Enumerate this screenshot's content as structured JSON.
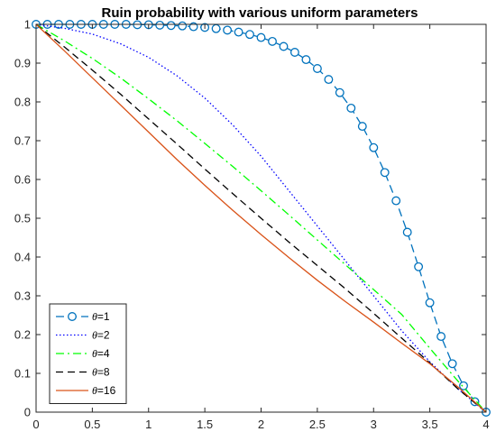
{
  "chart_data": {
    "type": "line",
    "title": "Ruin probability with various uniform parameters",
    "xlabel": "",
    "ylabel": "",
    "xlim": [
      0,
      4
    ],
    "ylim": [
      0,
      1
    ],
    "x_ticks": [
      0,
      0.5,
      1,
      1.5,
      2,
      2.5,
      3,
      3.5,
      4
    ],
    "x_tick_labels": [
      "0",
      "0.5",
      "1",
      "1.5",
      "2",
      "2.5",
      "3",
      "3.5",
      "4"
    ],
    "y_ticks": [
      0,
      0.1,
      0.2,
      0.3,
      0.4,
      0.5,
      0.6,
      0.7,
      0.8,
      0.9,
      1
    ],
    "y_tick_labels": [
      "0",
      "0.1",
      "0.2",
      "0.3",
      "0.4",
      "0.5",
      "0.6",
      "0.7",
      "0.8",
      "0.9",
      "1"
    ],
    "grid": false,
    "legend_position": "bottom-left",
    "series": [
      {
        "name": "θ=1",
        "theta_symbol": "θ",
        "theta_value": "=1",
        "color": "#0072BD",
        "style": "dashed-circles",
        "x": [
          0,
          0.1,
          0.2,
          0.3,
          0.4,
          0.5,
          0.6,
          0.7,
          0.8,
          0.9,
          1.0,
          1.1,
          1.2,
          1.3,
          1.4,
          1.5,
          1.6,
          1.7,
          1.8,
          1.9,
          2.0,
          2.1,
          2.2,
          2.3,
          2.4,
          2.5,
          2.6,
          2.7,
          2.8,
          2.9,
          3.0,
          3.1,
          3.2,
          3.3,
          3.4,
          3.5,
          3.6,
          3.7,
          3.8,
          3.9,
          4.0
        ],
        "values": [
          1.0,
          1.0,
          1.0,
          1.0,
          1.0,
          1.0,
          1.0,
          1.0,
          1.0,
          0.999,
          0.999,
          0.998,
          0.997,
          0.996,
          0.994,
          0.992,
          0.989,
          0.985,
          0.98,
          0.974,
          0.966,
          0.956,
          0.943,
          0.928,
          0.909,
          0.886,
          0.858,
          0.824,
          0.784,
          0.737,
          0.682,
          0.618,
          0.545,
          0.464,
          0.375,
          0.282,
          0.195,
          0.125,
          0.068,
          0.027,
          0.0
        ]
      },
      {
        "name": "θ=2",
        "theta_symbol": "θ",
        "theta_value": "=2",
        "color": "#0000FF",
        "style": "dotted",
        "x": [
          0,
          0.25,
          0.5,
          0.75,
          1.0,
          1.25,
          1.5,
          1.75,
          2.0,
          2.25,
          2.5,
          2.75,
          3.0,
          3.25,
          3.5,
          3.75,
          4.0
        ],
        "values": [
          1.0,
          0.99,
          0.975,
          0.95,
          0.915,
          0.868,
          0.81,
          0.74,
          0.66,
          0.57,
          0.48,
          0.39,
          0.3,
          0.21,
          0.13,
          0.06,
          0.0
        ]
      },
      {
        "name": "θ=4",
        "theta_symbol": "θ",
        "theta_value": "=4",
        "color": "#00FF00",
        "style": "dashdot",
        "x": [
          0,
          0.25,
          0.5,
          0.75,
          1.0,
          1.25,
          1.5,
          1.75,
          2.0,
          2.25,
          2.5,
          2.75,
          3.0,
          3.25,
          3.5,
          3.75,
          4.0
        ],
        "values": [
          1.0,
          0.958,
          0.912,
          0.862,
          0.808,
          0.752,
          0.693,
          0.633,
          0.571,
          0.508,
          0.444,
          0.38,
          0.316,
          0.252,
          0.165,
          0.08,
          0.0
        ]
      },
      {
        "name": "θ=8",
        "theta_symbol": "θ",
        "theta_value": "=8",
        "color": "#000000",
        "style": "dashed",
        "x": [
          0,
          0.25,
          0.5,
          0.75,
          1.0,
          1.25,
          1.5,
          1.75,
          2.0,
          2.25,
          2.5,
          2.75,
          3.0,
          3.25,
          3.5,
          3.75,
          4.0
        ],
        "values": [
          1.0,
          0.942,
          0.882,
          0.82,
          0.756,
          0.692,
          0.627,
          0.563,
          0.5,
          0.438,
          0.378,
          0.318,
          0.255,
          0.191,
          0.127,
          0.06,
          0.0
        ]
      },
      {
        "name": "θ=16",
        "theta_symbol": "θ",
        "theta_value": "=16",
        "color": "#D95319",
        "style": "solid",
        "x": [
          0,
          0.25,
          0.5,
          0.75,
          1.0,
          1.25,
          1.5,
          1.75,
          2.0,
          2.25,
          2.5,
          2.75,
          3.0,
          3.25,
          3.5,
          3.75,
          4.0
        ],
        "values": [
          1.0,
          0.932,
          0.862,
          0.792,
          0.722,
          0.652,
          0.585,
          0.52,
          0.458,
          0.398,
          0.34,
          0.285,
          0.232,
          0.178,
          0.125,
          0.065,
          0.0
        ]
      }
    ]
  }
}
